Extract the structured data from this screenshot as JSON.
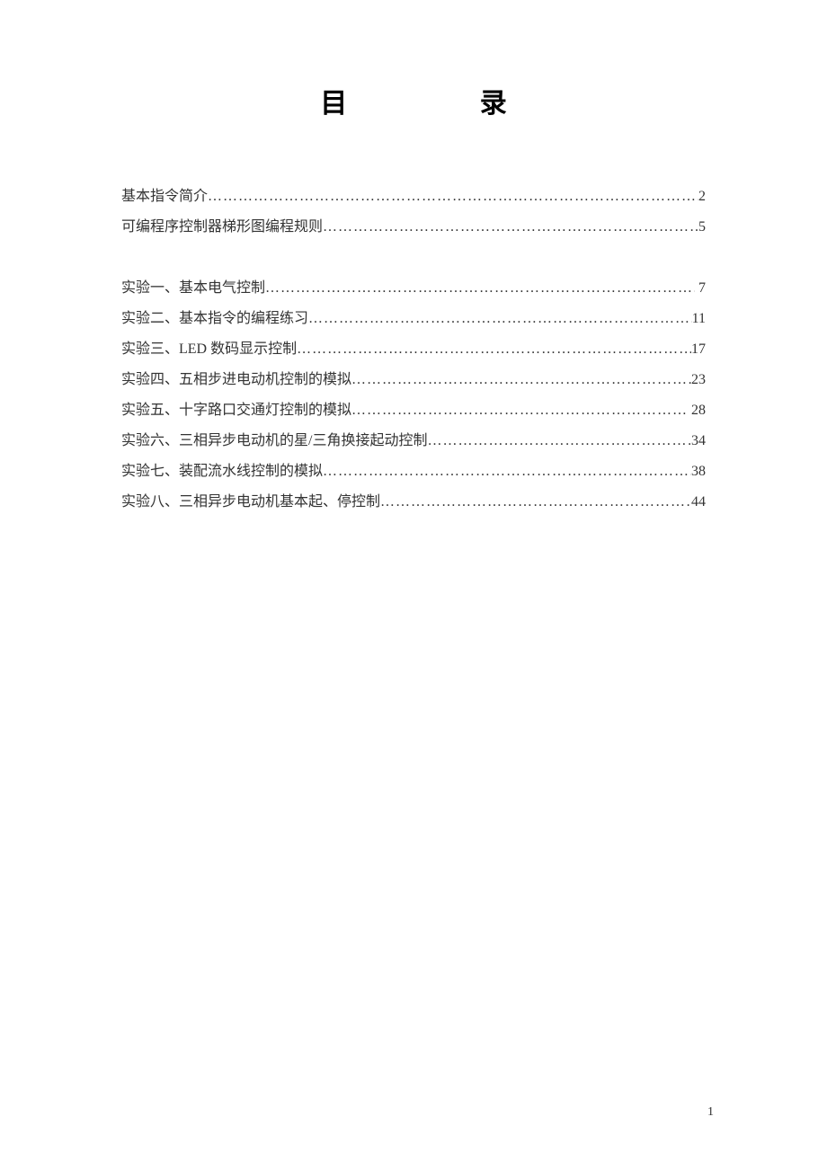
{
  "title": {
    "char1": "目",
    "char2": "录"
  },
  "intro_entries": [
    {
      "label": "基本指令简介 ",
      "page": "2"
    },
    {
      "label": "可编程序控制器梯形图编程规则 ",
      "page": "5"
    }
  ],
  "experiment_entries": [
    {
      "label": "实验一、基本电气控制",
      "page": " 7",
      "spaced": true
    },
    {
      "label": "实验二、基本指令的编程练习",
      "page": "11"
    },
    {
      "label": "实验三、LED 数码显示控制 ",
      "page": "17"
    },
    {
      "label": "实验四、五相步进电动机控制的模拟  ",
      "page": "23"
    },
    {
      "label": "实验五、十字路口交通灯控制的模拟 ",
      "page": " 28",
      "spaced": true
    },
    {
      "label": "实验六、三相异步电动机的星/三角换接起动控制 ",
      "page": "34"
    },
    {
      "label": "实验七、装配流水线控制的模拟",
      "page": "38"
    },
    {
      "label": "实验八、三相异步电动机基本起、停控制",
      "page": "44"
    }
  ],
  "footer_page_number": "1"
}
